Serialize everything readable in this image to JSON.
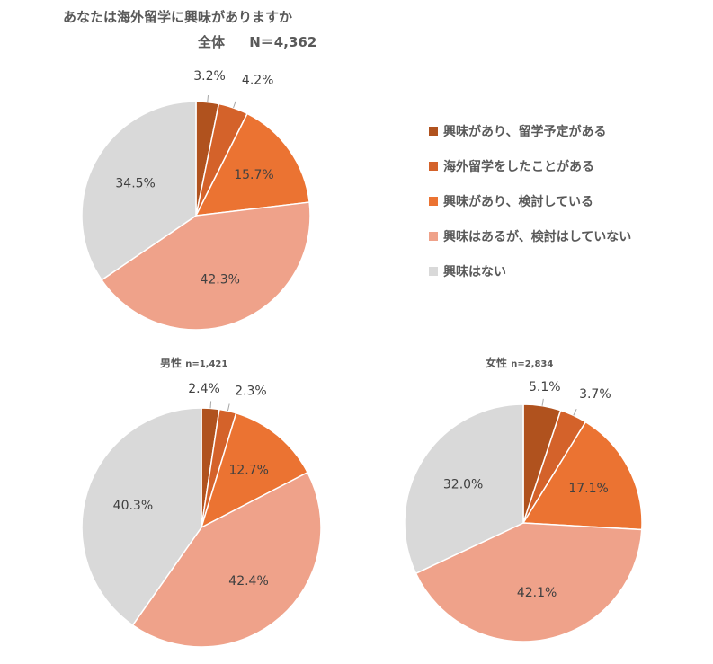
{
  "title": "あなたは海外留学に興味がありますか",
  "colors": [
    "#b0521e",
    "#d4622a",
    "#eb7332",
    "#efa28a",
    "#d9d9d9"
  ],
  "legend": [
    "興味があり、留学予定がある",
    "海外留学をしたことがある",
    "興味があり、検討している",
    "興味はあるが、検討はしていない",
    "興味はない"
  ],
  "chart_data": [
    {
      "type": "pie",
      "title": "全体",
      "n_label": "N＝4,362",
      "categories": [
        "興味があり、留学予定がある",
        "海外留学をしたことがある",
        "興味があり、検討している",
        "興味はあるが、検討はしていない",
        "興味はない"
      ],
      "values": [
        3.2,
        4.2,
        15.7,
        42.3,
        34.5
      ],
      "labels": [
        "3.2%",
        "4.2%",
        "15.7%",
        "42.3%",
        "34.5%"
      ]
    },
    {
      "type": "pie",
      "title": "男性",
      "n_label": "n=1,421",
      "categories": [
        "興味があり、留学予定がある",
        "海外留学をしたことがある",
        "興味があり、検討している",
        "興味はあるが、検討はしていない",
        "興味はない"
      ],
      "values": [
        2.4,
        2.3,
        12.7,
        42.4,
        40.3
      ],
      "labels": [
        "2.4%",
        "2.3%",
        "12.7%",
        "42.4%",
        "40.3%"
      ]
    },
    {
      "type": "pie",
      "title": "女性",
      "n_label": "n=2,834",
      "categories": [
        "興味があり、留学予定がある",
        "海外留学をしたことがある",
        "興味があり、検討している",
        "興味はあるが、検討はしていない",
        "興味はない"
      ],
      "values": [
        5.1,
        3.7,
        17.1,
        42.1,
        32.0
      ],
      "labels": [
        "5.1%",
        "3.7%",
        "17.1%",
        "42.1%",
        "32.0%"
      ]
    }
  ]
}
